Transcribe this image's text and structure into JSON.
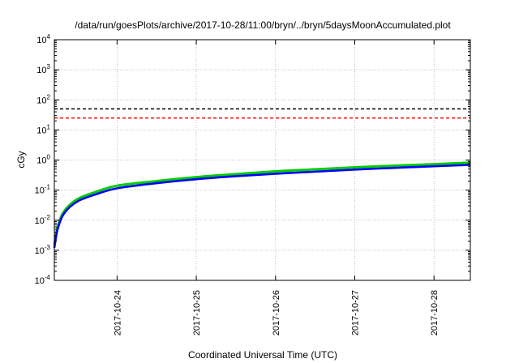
{
  "chart_data": {
    "type": "line",
    "title": "/data/run/goesPlots/archive/2017-10-28/11:00/bryn/../bryn/5daysMoonAccumulated.plot",
    "xlabel": "Coordinated Universal Time (UTC)",
    "ylabel": "cGy",
    "xlim": [
      "2017-10-23T05:00",
      "2017-10-28T11:00"
    ],
    "x_ticks": [
      "2017-10-24",
      "2017-10-25",
      "2017-10-26",
      "2017-10-27",
      "2017-10-28"
    ],
    "yscale": "log",
    "ylim": [
      0.0001,
      10000
    ],
    "y_ticks": [
      {
        "base": "10",
        "exp": "-4"
      },
      {
        "base": "10",
        "exp": "-3"
      },
      {
        "base": "10",
        "exp": "-2"
      },
      {
        "base": "10",
        "exp": "-1"
      },
      {
        "base": "10",
        "exp": "0"
      },
      {
        "base": "10",
        "exp": "1"
      },
      {
        "base": "10",
        "exp": "2"
      },
      {
        "base": "10",
        "exp": "3"
      },
      {
        "base": "10",
        "exp": "4"
      }
    ],
    "grid": true,
    "reference_lines": [
      {
        "y": 50,
        "color": "#000000",
        "style": "dashed"
      },
      {
        "y": 25,
        "color": "#ff0000",
        "style": "dashed"
      }
    ],
    "series": [
      {
        "color": "#00cc00",
        "x": [
          "2017-10-23T05:00",
          "2017-10-23T06:00",
          "2017-10-23T08:00",
          "2017-10-23T12:00",
          "2017-10-23T18:00",
          "2017-10-24T00:00",
          "2017-10-24T12:00",
          "2017-10-25T00:00",
          "2017-10-25T12:00",
          "2017-10-26T00:00",
          "2017-10-26T12:00",
          "2017-10-27T00:00",
          "2017-10-27T12:00",
          "2017-10-28T00:00",
          "2017-10-28T11:00"
        ],
        "values": [
          0.0015,
          0.006,
          0.02,
          0.05,
          0.09,
          0.14,
          0.2,
          0.27,
          0.34,
          0.42,
          0.49,
          0.57,
          0.65,
          0.73,
          0.82
        ]
      },
      {
        "color": "#0000ff",
        "x": [
          "2017-10-23T05:00",
          "2017-10-23T06:00",
          "2017-10-23T08:00",
          "2017-10-23T12:00",
          "2017-10-23T18:00",
          "2017-10-24T00:00",
          "2017-10-24T12:00",
          "2017-10-25T00:00",
          "2017-10-25T12:00",
          "2017-10-26T00:00",
          "2017-10-26T12:00",
          "2017-10-27T00:00",
          "2017-10-27T12:00",
          "2017-10-28T00:00",
          "2017-10-28T11:00"
        ],
        "values": [
          0.0012,
          0.005,
          0.017,
          0.042,
          0.075,
          0.115,
          0.17,
          0.23,
          0.29,
          0.35,
          0.41,
          0.48,
          0.55,
          0.62,
          0.69
        ]
      }
    ]
  }
}
